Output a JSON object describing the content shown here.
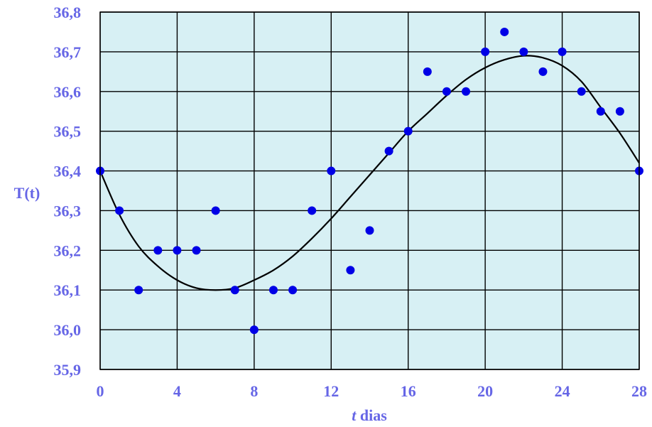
{
  "chart_data": {
    "type": "scatter",
    "title": "",
    "xlabel_italic": "t",
    "xlabel_rest": " dias",
    "ylabel": "T(t)",
    "xlim": [
      0,
      28
    ],
    "ylim": [
      35.9,
      36.8
    ],
    "x_ticks": [
      "0",
      "4",
      "8",
      "12",
      "16",
      "20",
      "24",
      "28"
    ],
    "y_ticks": [
      "36,8",
      "36,7",
      "36,6",
      "36,5",
      "36,4",
      "36,3",
      "36,2",
      "36,1",
      "36,0",
      "35,9"
    ],
    "grid": true,
    "legend": "none",
    "colors": {
      "plot_background": "#d7f0f4",
      "points": "#0000e6",
      "curve": "#000000",
      "grid": "#000000",
      "axis_text": "#6666e6"
    },
    "series": [
      {
        "kind": "points",
        "x": [
          0,
          1,
          2,
          3,
          4,
          5,
          6,
          7,
          8,
          9,
          10,
          11,
          12,
          13,
          14,
          15,
          16,
          17,
          18,
          19,
          20,
          21,
          22,
          23,
          24,
          25,
          26,
          27,
          28
        ],
        "y": [
          36.4,
          36.3,
          36.1,
          36.2,
          36.2,
          36.2,
          36.3,
          36.1,
          36.0,
          36.1,
          36.1,
          36.3,
          36.4,
          36.15,
          36.25,
          36.45,
          36.5,
          36.65,
          36.6,
          36.6,
          36.7,
          36.75,
          36.7,
          36.65,
          36.7,
          36.6,
          36.55,
          36.55,
          36.4
        ]
      },
      {
        "kind": "fitted-curve",
        "x": [
          0,
          1,
          2,
          3,
          4,
          5,
          6,
          7,
          8,
          9,
          10,
          11,
          12,
          13,
          14,
          15,
          16,
          17,
          18,
          19,
          20,
          21,
          22,
          23,
          24,
          25,
          26,
          27,
          28
        ],
        "y": [
          36.4,
          36.29,
          36.21,
          36.16,
          36.125,
          36.105,
          36.1,
          36.105,
          36.125,
          36.15,
          36.185,
          36.23,
          36.28,
          36.335,
          36.39,
          36.445,
          36.5,
          36.545,
          36.59,
          36.63,
          36.66,
          36.68,
          36.69,
          36.685,
          36.665,
          36.625,
          36.56,
          36.495,
          36.42
        ]
      }
    ]
  }
}
